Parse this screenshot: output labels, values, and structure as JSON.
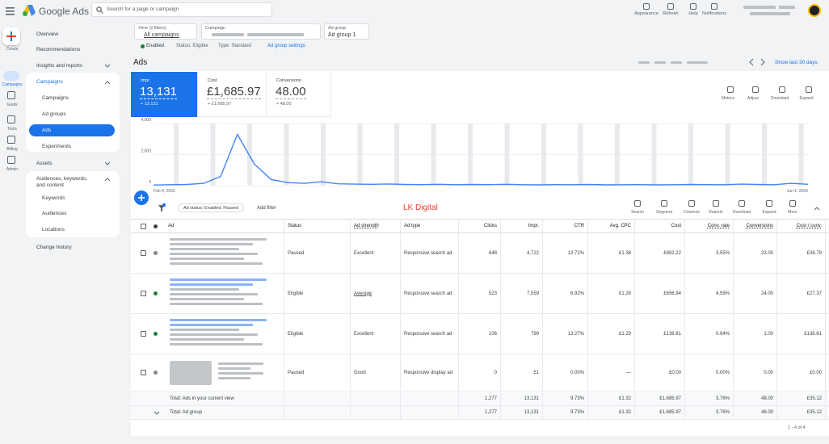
{
  "header": {
    "product": "Google Ads",
    "search_placeholder": "Search for a page or campaign",
    "actions": [
      "Appearance",
      "Refresh",
      "Help",
      "Notifications"
    ]
  },
  "nav_rail": [
    "Create",
    "Campaigns",
    "Goals",
    "Tools",
    "Billing",
    "Admin"
  ],
  "sidebar": {
    "items": [
      "Overview",
      "Recommendations",
      "Insights and reports",
      "Campaigns",
      "Campaigns",
      "Ad groups",
      "Ads",
      "Experiments",
      "Assets",
      "Audiences, keywords, and content",
      "Keywords",
      "Audiences",
      "Locations",
      "Change history"
    ]
  },
  "filters": {
    "view_label": "View (2 filters)",
    "view_value": "All campaigns",
    "campaign_label": "Campaign",
    "adgroup_label": "Ad group",
    "adgroup_value": "Ad group 1",
    "state": "Enabled",
    "status": "Status: Eligible",
    "type": "Type: Standard",
    "settings": "Ad group settings"
  },
  "page_title": "Ads",
  "date_range": "Show last 30 days",
  "scorecards": [
    {
      "label": "Impr.",
      "value": "13,131",
      "compare": "+ 13,131"
    },
    {
      "label": "Cost",
      "value": "£1,685.97",
      "compare": "+ £1,685.97"
    },
    {
      "label": "Conversions",
      "value": "48.00",
      "compare": "+ 48.00"
    }
  ],
  "chart_tools": [
    "Metrics",
    "Adjust",
    "Download",
    "Expand"
  ],
  "chart_data": {
    "type": "line",
    "color": "#4285f4",
    "ylim": [
      0,
      4000
    ],
    "yticks": [
      {
        "value": 0,
        "label": "0"
      },
      {
        "value": 2000,
        "label": "2,000"
      },
      {
        "value": 4000,
        "label": "4,000"
      }
    ],
    "categories": [
      "Feb 4, 2026",
      null,
      null,
      null,
      null,
      null,
      null,
      null,
      null,
      null,
      null,
      null,
      null,
      null,
      null,
      null,
      null,
      null,
      null,
      null,
      null,
      null,
      null,
      null,
      null,
      null,
      null,
      null,
      null,
      null,
      null,
      null,
      null,
      null,
      null,
      null,
      null,
      null,
      null,
      "Jun 1, 2026"
    ],
    "values": [
      40,
      60,
      80,
      150,
      600,
      3300,
      1400,
      400,
      200,
      150,
      250,
      120,
      100,
      90,
      110,
      80,
      70,
      90,
      60,
      80,
      70,
      90,
      60,
      50,
      70,
      60,
      80,
      50,
      60,
      70,
      50,
      60,
      80,
      70,
      60,
      100,
      80,
      60,
      150,
      90
    ]
  },
  "table": {
    "filter_chip": "Ad status: Enabled, Paused",
    "add_filter": "Add filter",
    "watermark": "LK Digital",
    "tools": [
      "Search",
      "Segment",
      "Columns",
      "Reports",
      "Download",
      "Expand",
      "More"
    ],
    "columns": [
      "Ad",
      "Status",
      "Ad strength",
      "Ad type",
      "Clicks",
      "Impr.",
      "CTR",
      "Avg. CPC",
      "Cost",
      "Conv. rate",
      "Conversions",
      "Cost / conv."
    ],
    "rows": [
      {
        "cells": [
          "Paused",
          "Excellent",
          "Responsive search ad",
          "648",
          "4,722",
          "13.72%",
          "£1.38",
          "£892.22",
          "3.55%",
          "23.00",
          "£38.79"
        ]
      },
      {
        "cells": [
          "Eligible",
          "Average",
          "Responsive search ad",
          "523",
          "7,559",
          "6.92%",
          "£1.26",
          "£656.94",
          "4.59%",
          "24.00",
          "£27.37"
        ]
      },
      {
        "cells": [
          "Eligible",
          "Excellent",
          "Responsive search ad",
          "106",
          "799",
          "13.27%",
          "£1.29",
          "£136.81",
          "0.94%",
          "1.00",
          "£136.81"
        ]
      },
      {
        "cells": [
          "Paused",
          "Good",
          "Responsive display ad",
          "0",
          "51",
          "0.00%",
          "—",
          "£0.00",
          "0.00%",
          "0.00",
          "£0.00"
        ]
      }
    ],
    "totals": [
      {
        "label": "Total: Ads in your current view",
        "cells": [
          "1,277",
          "13,131",
          "9.73%",
          "£1.32",
          "£1,685.97",
          "3.76%",
          "48.00",
          "£35.12"
        ]
      },
      {
        "label": "Total: Ad group",
        "cells": [
          "1,277",
          "13,131",
          "9.73%",
          "£1.32",
          "£1,685.97",
          "3.76%",
          "48.00",
          "£35.12"
        ]
      }
    ],
    "pagination": "1 - 4 of 4"
  }
}
